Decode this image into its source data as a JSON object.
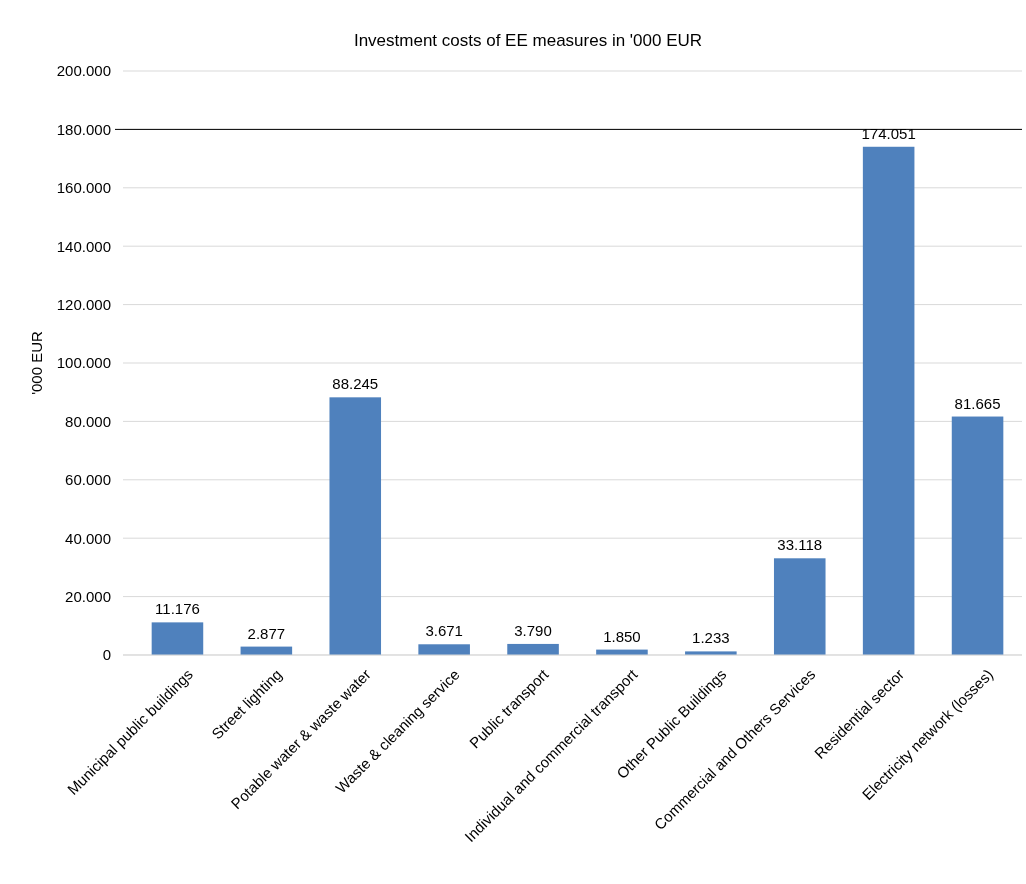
{
  "chart_data": {
    "type": "bar",
    "title": "Investment costs of EE measures in '000 EUR",
    "ylabel": "'000 EUR",
    "categories": [
      "Municipal public buildings",
      "Street lighting",
      "Potable water & waste water",
      "Waste & cleaning service",
      "Public transport",
      "Individual and commercial transport",
      "Other Public Buildings",
      "Commercial and Others Services",
      "Residential sector",
      "Electricity network (losses)"
    ],
    "values": [
      11176,
      2877,
      88245,
      3671,
      3790,
      1850,
      1233,
      33118,
      174051,
      81665
    ],
    "value_labels": [
      "11.176",
      "2.877",
      "88.245",
      "3.671",
      "3.790",
      "1.850",
      "1.233",
      "33.118",
      "174.051",
      "81.665"
    ],
    "color": "#4f81bd",
    "ylim": [
      0,
      200000
    ],
    "yticks": [
      {
        "value": 0,
        "label": "0"
      },
      {
        "value": 20000,
        "label": "20.000"
      },
      {
        "value": 40000,
        "label": "40.000"
      },
      {
        "value": 60000,
        "label": "60.000"
      },
      {
        "value": 80000,
        "label": "80.000"
      },
      {
        "value": 100000,
        "label": "100.000"
      },
      {
        "value": 120000,
        "label": "120.000"
      },
      {
        "value": 140000,
        "label": "140.000"
      },
      {
        "value": 160000,
        "label": "160.000"
      },
      {
        "value": 180000,
        "label": "180.000"
      },
      {
        "value": 200000,
        "label": "200.000"
      }
    ],
    "grid": "y",
    "ref_lines": [
      {
        "axis": "y",
        "value": 180000,
        "color": "#000000"
      }
    ]
  }
}
